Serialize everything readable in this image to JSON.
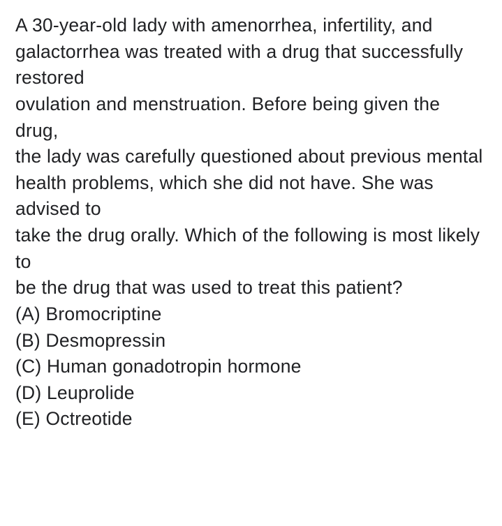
{
  "question": {
    "fontSize": 26.5,
    "fontWeight": 400,
    "color": "#202124",
    "lines": [
      "A 30-year-old lady with amenorrhea, infertility, and",
      "galactorrhea was treated with a drug that successfully restored",
      "ovulation and menstruation. Before being given the drug,",
      "the lady was carefully questioned about previous mental",
      "health problems, which she did not have. She was advised to",
      "take the drug orally. Which of the following is most likely to",
      "be the drug that was used to treat this patient?"
    ],
    "options": [
      "(A) Bromocriptine",
      "(B) Desmopressin",
      "(C) Human gonadotropin hormone",
      "(D) Leuprolide",
      "(E) Octreotide"
    ]
  }
}
